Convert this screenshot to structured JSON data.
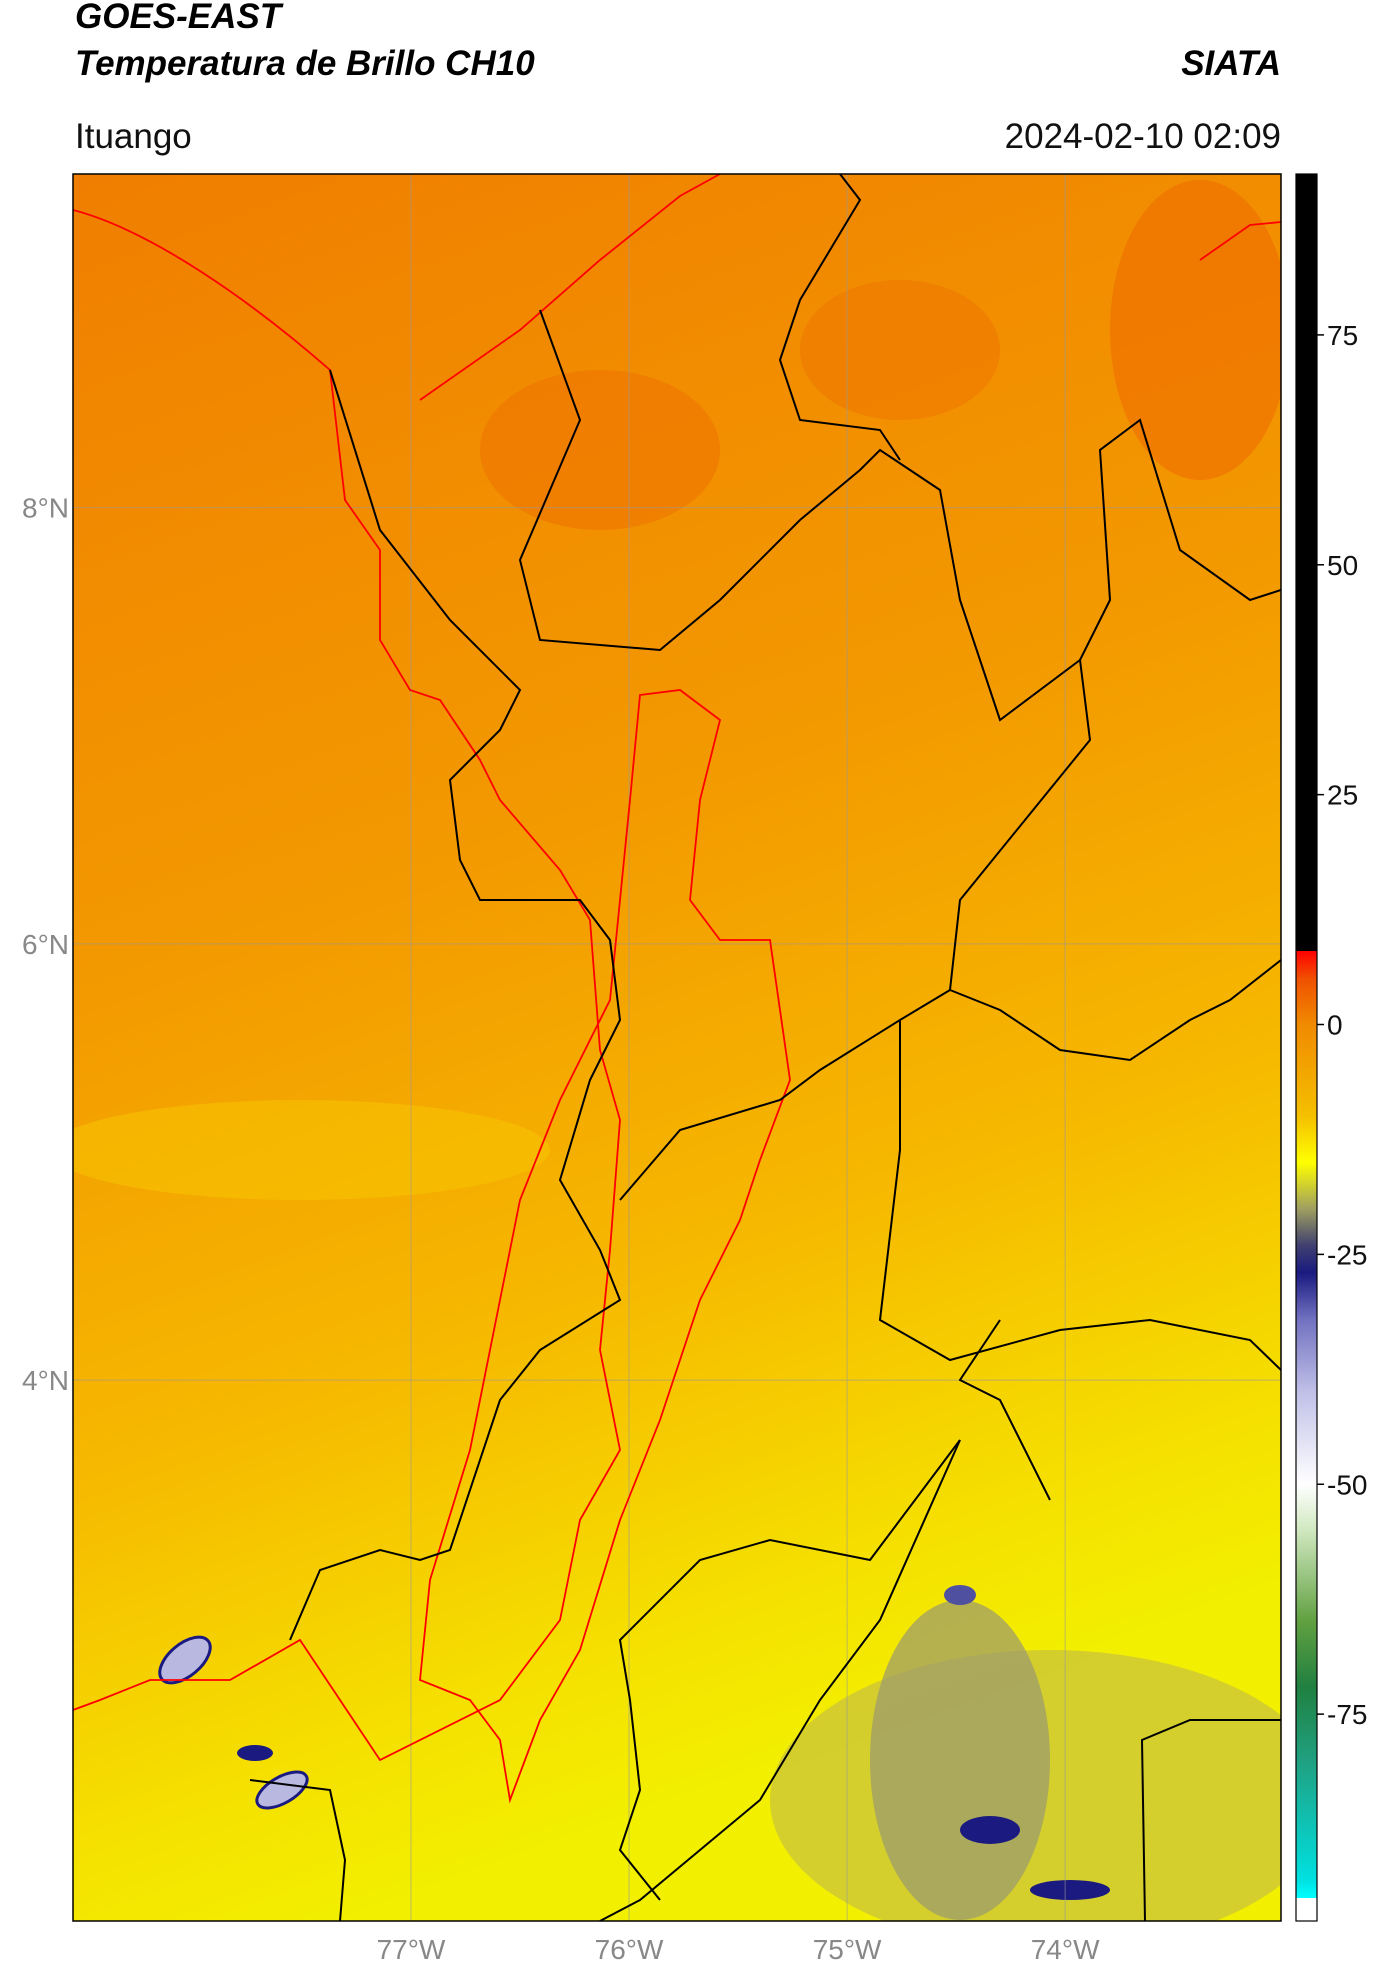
{
  "chart_data": {
    "type": "map",
    "title": "GOES-EAST",
    "subtitle": "Temperatura de Brillo CH10",
    "source": "SIATA",
    "location": "Ituango",
    "timestamp": "2024-02-10 02:09",
    "xlim": [
      -78.55,
      -73.01
    ],
    "ylim": [
      1.52,
      9.53
    ],
    "xticks": [
      {
        "value": -77,
        "label": "77°W"
      },
      {
        "value": -76,
        "label": "76°W"
      },
      {
        "value": -75,
        "label": "75°W"
      },
      {
        "value": -74,
        "label": "74°W"
      }
    ],
    "yticks": [
      {
        "value": 8,
        "label": "8°N"
      },
      {
        "value": 6,
        "label": "6°N"
      },
      {
        "value": 4,
        "label": "4°N"
      }
    ],
    "grid": true,
    "clim": [
      -97.5,
      92.5
    ],
    "cticks": [
      75,
      50,
      25,
      0,
      -25,
      -50,
      -75
    ],
    "colormap": [
      {
        "value": 92.5,
        "color": "#000000"
      },
      {
        "value": 8,
        "color": "#000000"
      },
      {
        "value": 8,
        "color": "#ff0000"
      },
      {
        "value": 5,
        "color": "#f05000"
      },
      {
        "value": 0,
        "color": "#f08a00"
      },
      {
        "value": -10,
        "color": "#f5c000"
      },
      {
        "value": -15,
        "color": "#ffff00"
      },
      {
        "value": -20,
        "color": "#a0a060"
      },
      {
        "value": -24,
        "color": "#404070"
      },
      {
        "value": -27,
        "color": "#1a1a80"
      },
      {
        "value": -32,
        "color": "#7070c0"
      },
      {
        "value": -40,
        "color": "#c0c0e8"
      },
      {
        "value": -50,
        "color": "#ffffff"
      },
      {
        "value": -55,
        "color": "#d0e8c0"
      },
      {
        "value": -65,
        "color": "#60a040"
      },
      {
        "value": -72,
        "color": "#208040"
      },
      {
        "value": -80,
        "color": "#20a080"
      },
      {
        "value": -93,
        "color": "#00e0e0"
      },
      {
        "value": -95,
        "color": "#00ffff"
      },
      {
        "value": -95,
        "color": "#ffffff"
      },
      {
        "value": -97.5,
        "color": "#ffffff"
      }
    ]
  }
}
